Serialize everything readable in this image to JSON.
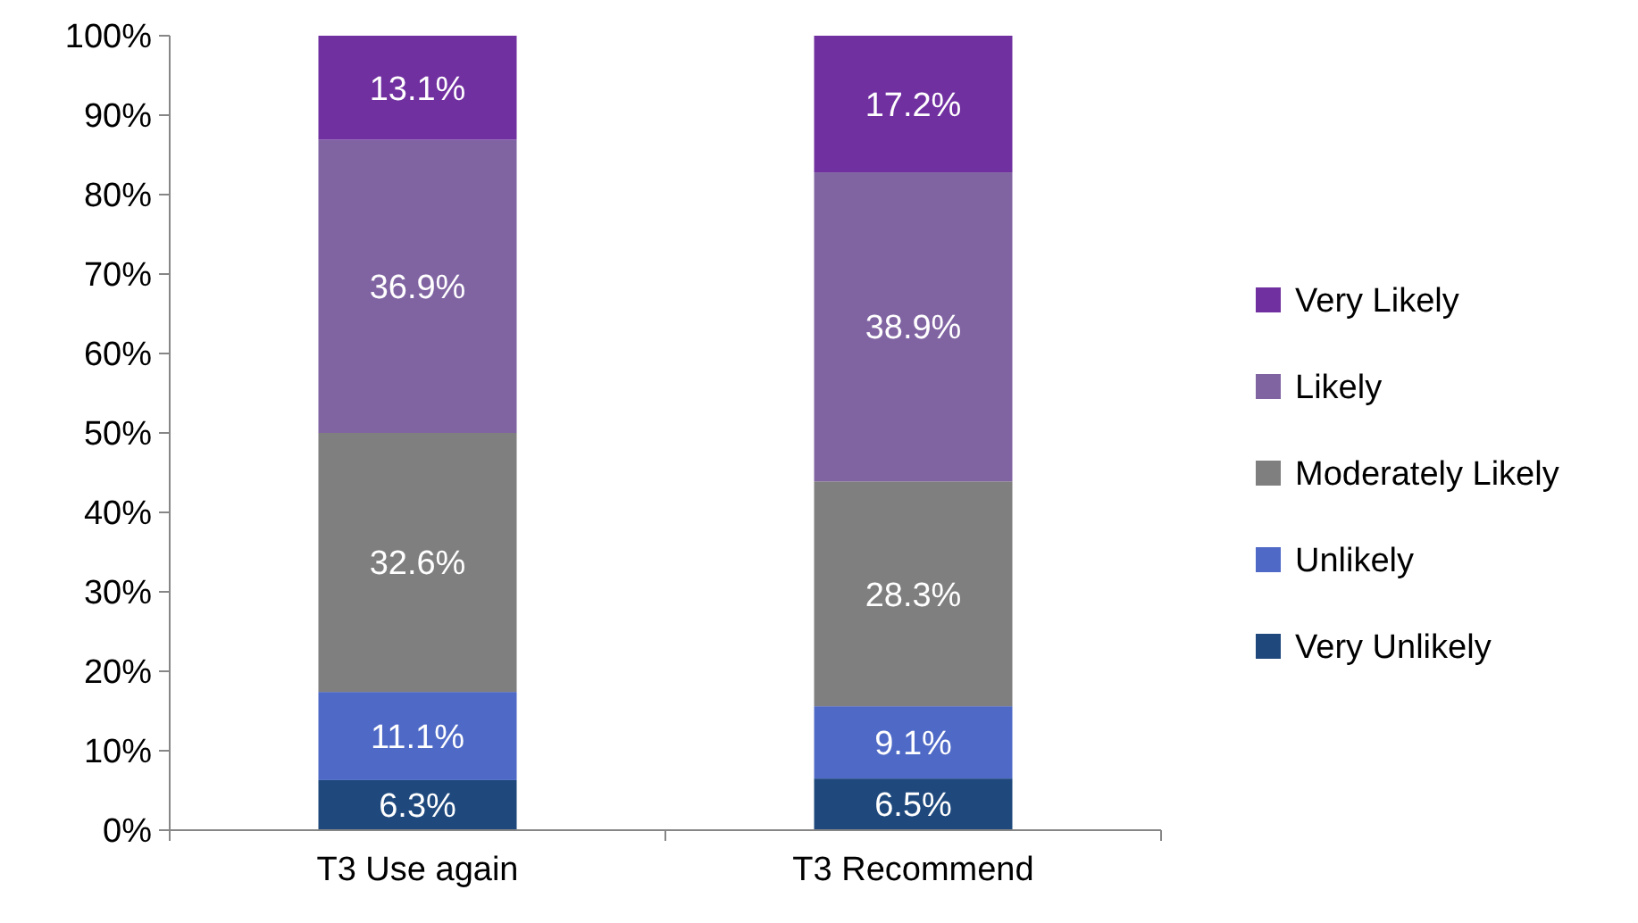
{
  "chart_data": {
    "type": "bar",
    "stacked": true,
    "categories": [
      "T3 Use again",
      "T3 Recommend"
    ],
    "series": [
      {
        "name": "Very Unlikely",
        "color": "#1f497d",
        "values": [
          6.3,
          6.5
        ]
      },
      {
        "name": "Unlikely",
        "color": "#4f6ac6",
        "values": [
          11.1,
          9.1
        ]
      },
      {
        "name": "Moderately Likely",
        "color": "#7f7f7f",
        "values": [
          32.6,
          28.3
        ]
      },
      {
        "name": "Likely",
        "color": "#8064a2",
        "values": [
          36.9,
          38.9
        ]
      },
      {
        "name": "Very Likely",
        "color": "#7030a0",
        "values": [
          13.1,
          17.2
        ]
      }
    ],
    "ylim": [
      0,
      100
    ],
    "yticks": [
      {
        "value": 0,
        "label": "0%"
      },
      {
        "value": 10,
        "label": "10%"
      },
      {
        "value": 20,
        "label": "20%"
      },
      {
        "value": 30,
        "label": "30%"
      },
      {
        "value": 40,
        "label": "40%"
      },
      {
        "value": 50,
        "label": "50%"
      },
      {
        "value": 60,
        "label": "60%"
      },
      {
        "value": 70,
        "label": "70%"
      },
      {
        "value": 80,
        "label": "80%"
      },
      {
        "value": 90,
        "label": "90%"
      },
      {
        "value": 100,
        "label": "100%"
      }
    ],
    "value_labels": [
      [
        "6.3%",
        "6.5%"
      ],
      [
        "11.1%",
        "9.1%"
      ],
      [
        "32.6%",
        "28.3%"
      ],
      [
        "36.9%",
        "38.9%"
      ],
      [
        "13.1%",
        "17.2%"
      ]
    ],
    "legend": "right",
    "grid": false
  }
}
